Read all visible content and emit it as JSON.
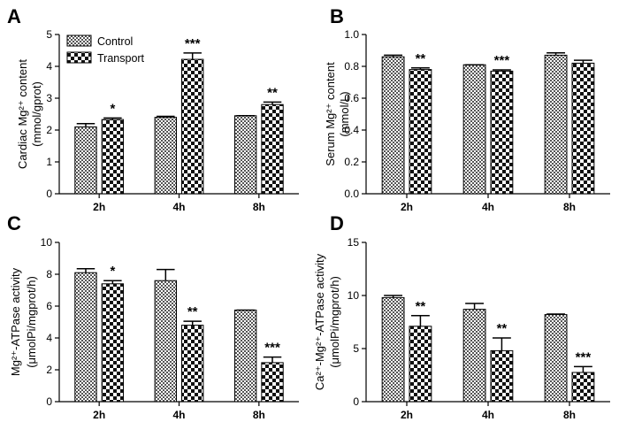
{
  "legend": {
    "items": [
      {
        "label": "Control",
        "pattern": "dense-check"
      },
      {
        "label": "Transport",
        "pattern": "coarse-check"
      }
    ]
  },
  "chart_data": [
    {
      "panel": "A",
      "type": "bar",
      "ylabel_line1": "Cardiac Mg²⁺ content",
      "ylabel_line2": "(mmol/gprot)",
      "categories": [
        "2h",
        "4h",
        "8h"
      ],
      "ylim": [
        0,
        5
      ],
      "yticks": [
        0,
        1,
        2,
        3,
        4,
        5
      ],
      "ytick_labels": [
        "0",
        "1",
        "2",
        "3",
        "4",
        "5"
      ],
      "series": [
        {
          "name": "Control",
          "values": [
            2.1,
            2.4,
            2.45
          ],
          "errors": [
            0.1,
            0.03,
            0.0
          ]
        },
        {
          "name": "Transport",
          "values": [
            2.33,
            4.22,
            2.8
          ],
          "errors": [
            0.05,
            0.2,
            0.08
          ]
        }
      ],
      "annotations": [
        "*",
        "***",
        "**"
      ]
    },
    {
      "panel": "B",
      "type": "bar",
      "ylabel_line1": "Serum Mg²⁺ content",
      "ylabel_line2": "(mmol/L)",
      "categories": [
        "2h",
        "4h",
        "8h"
      ],
      "ylim": [
        0,
        1.0
      ],
      "yticks": [
        0,
        0.2,
        0.4,
        0.6,
        0.8,
        1.0
      ],
      "ytick_labels": [
        "0.0",
        "0.2",
        "0.4",
        "0.6",
        "0.8",
        "1.0"
      ],
      "series": [
        {
          "name": "Control",
          "values": [
            0.86,
            0.81,
            0.87
          ],
          "errors": [
            0.01,
            0.0,
            0.015
          ]
        },
        {
          "name": "Transport",
          "values": [
            0.78,
            0.77,
            0.82
          ],
          "errors": [
            0.01,
            0.008,
            0.018
          ]
        }
      ],
      "annotations": [
        "**",
        "***",
        ""
      ]
    },
    {
      "panel": "C",
      "type": "bar",
      "ylabel_line1": "Mg²⁺-ATPase activity",
      "ylabel_line2": "(μmolPi/mgprot/h)",
      "categories": [
        "2h",
        "4h",
        "8h"
      ],
      "ylim": [
        0,
        10
      ],
      "yticks": [
        0,
        2,
        4,
        6,
        8,
        10
      ],
      "ytick_labels": [
        "0",
        "2",
        "4",
        "6",
        "8",
        "10"
      ],
      "series": [
        {
          "name": "Control",
          "values": [
            8.1,
            7.6,
            5.75
          ],
          "errors": [
            0.25,
            0.7,
            0.0
          ]
        },
        {
          "name": "Transport",
          "values": [
            7.4,
            4.8,
            2.45
          ],
          "errors": [
            0.2,
            0.25,
            0.35
          ]
        }
      ],
      "annotations": [
        "*",
        "**",
        "***"
      ]
    },
    {
      "panel": "D",
      "type": "bar",
      "ylabel_line1": "Ca²⁺-Mg²⁺-ATPase activity",
      "ylabel_line2": "(μmolPi/mgprot/h)",
      "categories": [
        "2h",
        "4h",
        "8h"
      ],
      "ylim": [
        0,
        15
      ],
      "yticks": [
        0,
        5,
        10,
        15
      ],
      "ytick_labels": [
        "0",
        "5",
        "10",
        "15"
      ],
      "series": [
        {
          "name": "Control",
          "values": [
            9.8,
            8.7,
            8.2
          ],
          "errors": [
            0.2,
            0.55,
            0.05
          ]
        },
        {
          "name": "Transport",
          "values": [
            7.1,
            4.8,
            2.75
          ],
          "errors": [
            1.0,
            1.2,
            0.55
          ]
        }
      ],
      "annotations": [
        "**",
        "**",
        "***"
      ]
    }
  ]
}
